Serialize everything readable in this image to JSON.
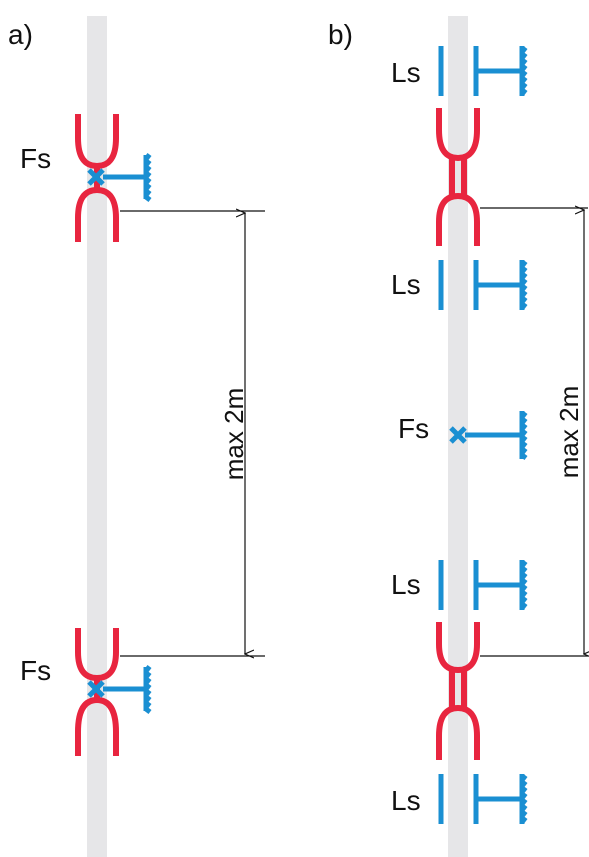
{
  "panels": {
    "a": {
      "label": "a)"
    },
    "b": {
      "label": "b)"
    }
  },
  "labels": {
    "fixed_support": "Fs",
    "loose_support": "Ls",
    "max_distance": "max 2m"
  },
  "colors": {
    "pipe": "#e6e6e8",
    "coupling": "#e8253f",
    "support": "#1a8fd2",
    "dimension": "#111111"
  }
}
